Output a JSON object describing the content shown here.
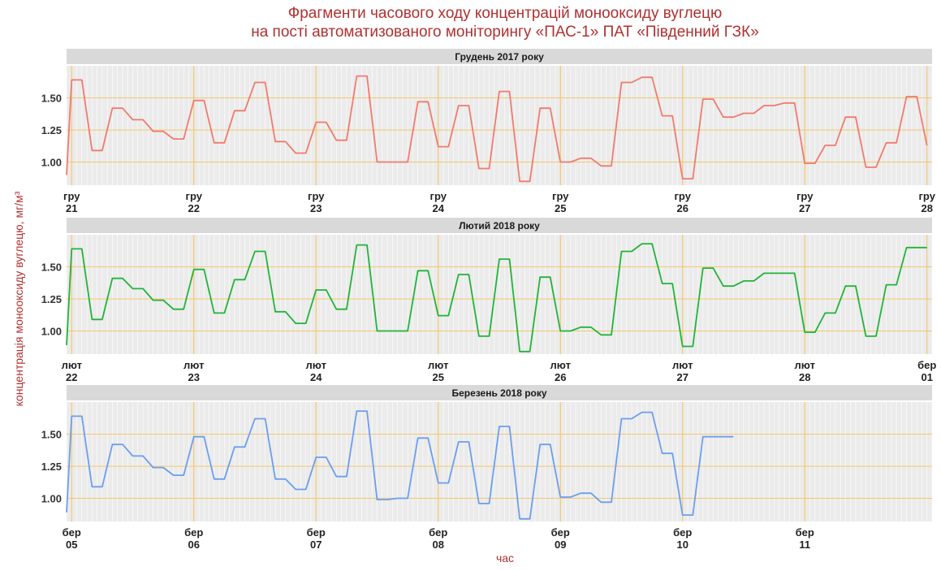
{
  "title_line1": "Фрагменти часового ходу концентрацій монооксиду вуглецю",
  "title_line2": "на пості автоматизованого моніторингу «ПАС-1» ПАТ «Південний ГЗК»",
  "xlabel": "час",
  "ylabel": "концентрація монооксиду вуглецю, мг/м³",
  "colors": {
    "panel1": "#f07b6e",
    "panel2": "#22b33a",
    "panel3": "#6b9ef0",
    "gridline": "#f5c25a",
    "strip": "#d9d9d9",
    "panel_bg": "#ebebeb"
  },
  "grid": true,
  "chart_data": [
    {
      "type": "line",
      "title": "Грудень 2017 року",
      "ylim": [
        0.82,
        1.75
      ],
      "yticks": [
        1.0,
        1.25,
        1.5
      ],
      "ytick_labels": [
        "1.00",
        "1.25",
        "1.50"
      ],
      "xlim": [
        "2017-12-20T23:00",
        "2017-12-28T01:00"
      ],
      "xticks": [
        "гру 21",
        "гру 22",
        "гру 23",
        "гру 24",
        "гру 25",
        "гру 26",
        "гру 27",
        "гру 28"
      ],
      "x": [
        "2017-12-20T23:00",
        "2017-12-21T00:00",
        "2017-12-21T02:00",
        "2017-12-21T04:00",
        "2017-12-21T06:00",
        "2017-12-21T08:00",
        "2017-12-21T10:00",
        "2017-12-21T12:00",
        "2017-12-21T14:00",
        "2017-12-21T16:00",
        "2017-12-21T18:00",
        "2017-12-21T20:00",
        "2017-12-21T22:00",
        "2017-12-22T00:00",
        "2017-12-22T02:00",
        "2017-12-22T04:00",
        "2017-12-22T06:00",
        "2017-12-22T08:00",
        "2017-12-22T10:00",
        "2017-12-22T12:00",
        "2017-12-22T14:00",
        "2017-12-22T16:00",
        "2017-12-22T18:00",
        "2017-12-22T20:00",
        "2017-12-22T22:00",
        "2017-12-23T00:00",
        "2017-12-23T02:00",
        "2017-12-23T04:00",
        "2017-12-23T06:00",
        "2017-12-23T08:00",
        "2017-12-23T10:00",
        "2017-12-23T12:00",
        "2017-12-23T14:00",
        "2017-12-23T16:00",
        "2017-12-23T18:00",
        "2017-12-23T20:00",
        "2017-12-23T22:00",
        "2017-12-24T00:00",
        "2017-12-24T02:00",
        "2017-12-24T04:00",
        "2017-12-24T06:00",
        "2017-12-24T08:00",
        "2017-12-24T10:00",
        "2017-12-24T12:00",
        "2017-12-24T14:00",
        "2017-12-24T16:00",
        "2017-12-24T18:00",
        "2017-12-24T20:00",
        "2017-12-24T22:00",
        "2017-12-25T00:00",
        "2017-12-25T02:00",
        "2017-12-25T04:00",
        "2017-12-25T06:00",
        "2017-12-25T08:00",
        "2017-12-25T10:00",
        "2017-12-25T12:00",
        "2017-12-25T14:00",
        "2017-12-25T16:00",
        "2017-12-25T18:00",
        "2017-12-25T20:00",
        "2017-12-25T22:00",
        "2017-12-26T00:00",
        "2017-12-26T02:00",
        "2017-12-26T04:00",
        "2017-12-26T06:00",
        "2017-12-26T08:00",
        "2017-12-26T10:00",
        "2017-12-26T12:00",
        "2017-12-26T14:00",
        "2017-12-26T16:00",
        "2017-12-26T18:00",
        "2017-12-26T20:00",
        "2017-12-26T22:00",
        "2017-12-27T00:00",
        "2017-12-27T02:00",
        "2017-12-27T04:00",
        "2017-12-27T06:00",
        "2017-12-27T08:00",
        "2017-12-27T10:00",
        "2017-12-27T12:00",
        "2017-12-27T14:00",
        "2017-12-27T16:00",
        "2017-12-27T18:00",
        "2017-12-27T20:00",
        "2017-12-27T22:00",
        "2017-12-28T00:00"
      ],
      "values": [
        0.9,
        1.64,
        1.64,
        1.09,
        1.09,
        1.42,
        1.42,
        1.33,
        1.33,
        1.24,
        1.24,
        1.18,
        1.18,
        1.48,
        1.48,
        1.15,
        1.15,
        1.4,
        1.4,
        1.62,
        1.62,
        1.16,
        1.16,
        1.07,
        1.07,
        1.31,
        1.31,
        1.17,
        1.17,
        1.67,
        1.67,
        1.0,
        1.0,
        1.0,
        1.0,
        1.47,
        1.47,
        1.12,
        1.12,
        1.44,
        1.44,
        0.95,
        0.95,
        1.55,
        1.55,
        0.85,
        0.85,
        1.42,
        1.42,
        1.0,
        1.0,
        1.03,
        1.03,
        0.97,
        0.97,
        1.62,
        1.62,
        1.66,
        1.66,
        1.36,
        1.36,
        0.87,
        0.87,
        1.49,
        1.49,
        1.35,
        1.35,
        1.38,
        1.38,
        1.44,
        1.44,
        1.46,
        1.46,
        0.99,
        0.99,
        1.13,
        1.13,
        1.35,
        1.35,
        0.96,
        0.96,
        1.15,
        1.15,
        1.51,
        1.51,
        1.13
      ]
    },
    {
      "type": "line",
      "title": "Лютий 2018 року",
      "ylim": [
        0.82,
        1.75
      ],
      "yticks": [
        1.0,
        1.25,
        1.5
      ],
      "ytick_labels": [
        "1.00",
        "1.25",
        "1.50"
      ],
      "xlim": [
        "2018-02-21T23:00",
        "2018-03-01T01:00"
      ],
      "xticks": [
        "лют 22",
        "лют 23",
        "лют 24",
        "лют 25",
        "лют 26",
        "лют 27",
        "лют 28",
        "бер 01"
      ],
      "x": [
        "2018-02-21T23:00",
        "2018-02-22T00:00",
        "2018-02-22T02:00",
        "2018-02-22T04:00",
        "2018-02-22T06:00",
        "2018-02-22T08:00",
        "2018-02-22T10:00",
        "2018-02-22T12:00",
        "2018-02-22T14:00",
        "2018-02-22T16:00",
        "2018-02-22T18:00",
        "2018-02-22T20:00",
        "2018-02-22T22:00",
        "2018-02-23T00:00",
        "2018-02-23T02:00",
        "2018-02-23T04:00",
        "2018-02-23T06:00",
        "2018-02-23T08:00",
        "2018-02-23T10:00",
        "2018-02-23T12:00",
        "2018-02-23T14:00",
        "2018-02-23T16:00",
        "2018-02-23T18:00",
        "2018-02-23T20:00",
        "2018-02-23T22:00",
        "2018-02-24T00:00",
        "2018-02-24T02:00",
        "2018-02-24T04:00",
        "2018-02-24T06:00",
        "2018-02-24T08:00",
        "2018-02-24T10:00",
        "2018-02-24T12:00",
        "2018-02-24T14:00",
        "2018-02-24T16:00",
        "2018-02-24T18:00",
        "2018-02-24T20:00",
        "2018-02-24T22:00",
        "2018-02-25T00:00",
        "2018-02-25T02:00",
        "2018-02-25T04:00",
        "2018-02-25T06:00",
        "2018-02-25T08:00",
        "2018-02-25T10:00",
        "2018-02-25T12:00",
        "2018-02-25T14:00",
        "2018-02-25T16:00",
        "2018-02-25T18:00",
        "2018-02-25T20:00",
        "2018-02-25T22:00",
        "2018-02-26T00:00",
        "2018-02-26T02:00",
        "2018-02-26T04:00",
        "2018-02-26T06:00",
        "2018-02-26T08:00",
        "2018-02-26T10:00",
        "2018-02-26T12:00",
        "2018-02-26T14:00",
        "2018-02-26T16:00",
        "2018-02-26T18:00",
        "2018-02-26T20:00",
        "2018-02-26T22:00",
        "2018-02-27T00:00",
        "2018-02-27T02:00",
        "2018-02-27T04:00",
        "2018-02-27T06:00",
        "2018-02-27T08:00",
        "2018-02-27T10:00",
        "2018-02-27T12:00",
        "2018-02-27T14:00",
        "2018-02-27T16:00",
        "2018-02-27T18:00",
        "2018-02-27T20:00",
        "2018-02-27T22:00",
        "2018-02-28T00:00",
        "2018-02-28T02:00",
        "2018-02-28T04:00",
        "2018-02-28T06:00",
        "2018-02-28T08:00",
        "2018-02-28T10:00",
        "2018-02-28T12:00",
        "2018-02-28T14:00",
        "2018-02-28T16:00",
        "2018-02-28T18:00",
        "2018-02-28T20:00",
        "2018-02-28T22:00",
        "2018-03-01T00:00"
      ],
      "values": [
        0.89,
        1.64,
        1.64,
        1.09,
        1.09,
        1.41,
        1.41,
        1.33,
        1.33,
        1.24,
        1.24,
        1.17,
        1.17,
        1.48,
        1.48,
        1.14,
        1.14,
        1.4,
        1.4,
        1.62,
        1.62,
        1.15,
        1.15,
        1.06,
        1.06,
        1.32,
        1.32,
        1.17,
        1.17,
        1.67,
        1.67,
        1.0,
        1.0,
        1.0,
        1.0,
        1.47,
        1.47,
        1.12,
        1.12,
        1.44,
        1.44,
        0.96,
        0.96,
        1.56,
        1.56,
        0.84,
        0.84,
        1.42,
        1.42,
        1.0,
        1.0,
        1.03,
        1.03,
        0.97,
        0.97,
        1.62,
        1.62,
        1.68,
        1.68,
        1.37,
        1.37,
        0.88,
        0.88,
        1.49,
        1.49,
        1.35,
        1.35,
        1.39,
        1.39,
        1.45,
        1.45,
        1.45,
        1.45,
        0.99,
        0.99,
        1.14,
        1.14,
        1.35,
        1.35,
        0.96,
        0.96,
        1.36,
        1.36,
        1.65,
        1.65,
        1.65
      ]
    },
    {
      "type": "line",
      "title": "Березень 2018 року",
      "ylim": [
        0.82,
        1.75
      ],
      "yticks": [
        1.0,
        1.25,
        1.5
      ],
      "ytick_labels": [
        "1.00",
        "1.25",
        "1.50"
      ],
      "xlim": [
        "2018-03-03T23:00",
        "2018-03-11T01:00"
      ],
      "xticks": [
        "бер 05",
        "бер 06",
        "бер 07",
        "бер 08",
        "бер 09",
        "бер 10",
        "бер 11"
      ],
      "x": [
        "2018-03-03T23:00",
        "2018-03-04T00:00",
        "2018-03-04T02:00",
        "2018-03-04T04:00",
        "2018-03-04T06:00",
        "2018-03-04T08:00",
        "2018-03-04T10:00",
        "2018-03-04T12:00",
        "2018-03-04T14:00",
        "2018-03-04T16:00",
        "2018-03-04T18:00",
        "2018-03-04T20:00",
        "2018-03-04T22:00",
        "2018-03-05T00:00",
        "2018-03-05T02:00",
        "2018-03-05T04:00",
        "2018-03-05T06:00",
        "2018-03-05T08:00",
        "2018-03-05T10:00",
        "2018-03-05T12:00",
        "2018-03-05T14:00",
        "2018-03-05T16:00",
        "2018-03-05T18:00",
        "2018-03-05T20:00",
        "2018-03-05T22:00",
        "2018-03-06T00:00",
        "2018-03-06T02:00",
        "2018-03-06T04:00",
        "2018-03-06T06:00",
        "2018-03-06T08:00",
        "2018-03-06T10:00",
        "2018-03-06T12:00",
        "2018-03-06T14:00",
        "2018-03-06T16:00",
        "2018-03-06T18:00",
        "2018-03-06T20:00",
        "2018-03-06T22:00",
        "2018-03-07T00:00",
        "2018-03-07T02:00",
        "2018-03-07T04:00",
        "2018-03-07T06:00",
        "2018-03-07T08:00",
        "2018-03-07T10:00",
        "2018-03-07T12:00",
        "2018-03-07T14:00",
        "2018-03-07T16:00",
        "2018-03-07T18:00",
        "2018-03-07T20:00",
        "2018-03-07T22:00",
        "2018-03-08T00:00",
        "2018-03-08T02:00",
        "2018-03-08T04:00",
        "2018-03-08T06:00",
        "2018-03-08T08:00",
        "2018-03-08T10:00",
        "2018-03-08T12:00",
        "2018-03-08T14:00",
        "2018-03-08T16:00",
        "2018-03-08T18:00",
        "2018-03-08T20:00",
        "2018-03-08T22:00",
        "2018-03-09T00:00",
        "2018-03-09T02:00",
        "2018-03-09T04:00",
        "2018-03-09T06:00",
        "2018-03-09T08:00",
        "2018-03-09T10:00"
      ],
      "values": [
        0.89,
        1.64,
        1.64,
        1.09,
        1.09,
        1.42,
        1.42,
        1.33,
        1.33,
        1.24,
        1.24,
        1.18,
        1.18,
        1.48,
        1.48,
        1.15,
        1.15,
        1.4,
        1.4,
        1.62,
        1.62,
        1.15,
        1.15,
        1.07,
        1.07,
        1.32,
        1.32,
        1.17,
        1.17,
        1.68,
        1.68,
        0.99,
        0.99,
        1.0,
        1.0,
        1.47,
        1.47,
        1.12,
        1.12,
        1.44,
        1.44,
        0.96,
        0.96,
        1.56,
        1.56,
        0.84,
        0.84,
        1.42,
        1.42,
        1.01,
        1.01,
        1.04,
        1.04,
        0.97,
        0.97,
        1.62,
        1.62,
        1.67,
        1.67,
        1.35,
        1.35,
        0.87,
        0.87,
        1.48,
        1.48,
        1.48,
        1.48
      ]
    }
  ]
}
